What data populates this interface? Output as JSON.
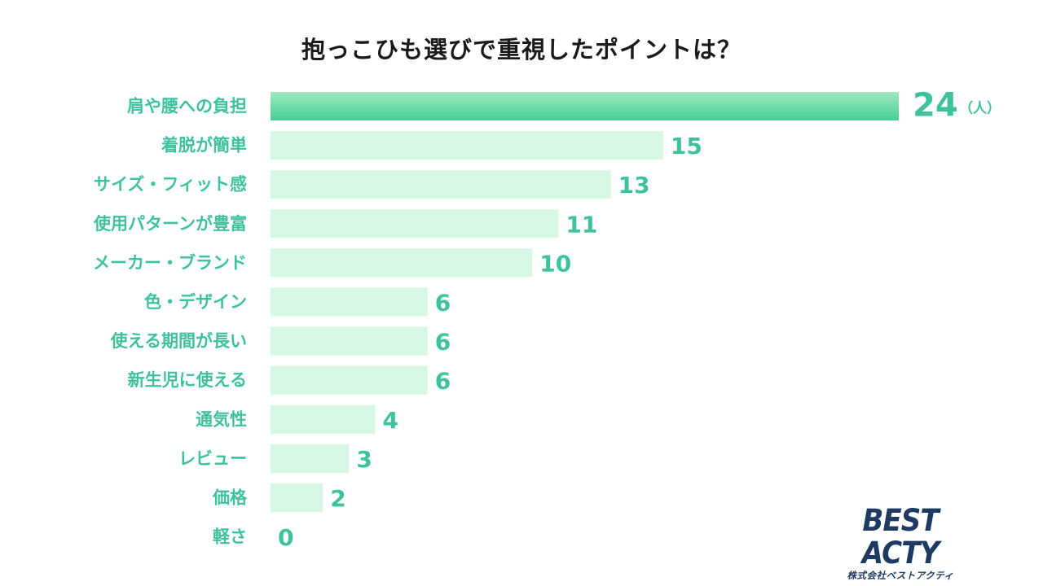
{
  "chart_data": {
    "type": "bar",
    "orientation": "horizontal",
    "title": "抱っこひも選びで重視したポイントは？",
    "unit": "（人）",
    "categories": [
      "肩や腰への負担",
      "着脱が簡単",
      "サイズ・フィット感",
      "使用パターンが豊富",
      "メーカー・ブランド",
      "色・デザイン",
      "使える期間が長い",
      "新生児に使える",
      "通気性",
      "レビュー",
      "価格",
      "軽さ"
    ],
    "values": [
      24,
      15,
      13,
      11,
      10,
      6,
      6,
      6,
      4,
      3,
      2,
      0
    ],
    "xlim": [
      0,
      24
    ],
    "grid": false,
    "colors": {
      "highlight_top": "#9ee9be",
      "highlight_bottom": "#44cf97",
      "bar": "#d7f7e5",
      "label": "#3ec29e"
    }
  },
  "logo": {
    "main": "BEST ACTY",
    "sub": "株式会社ベストアクティ"
  }
}
